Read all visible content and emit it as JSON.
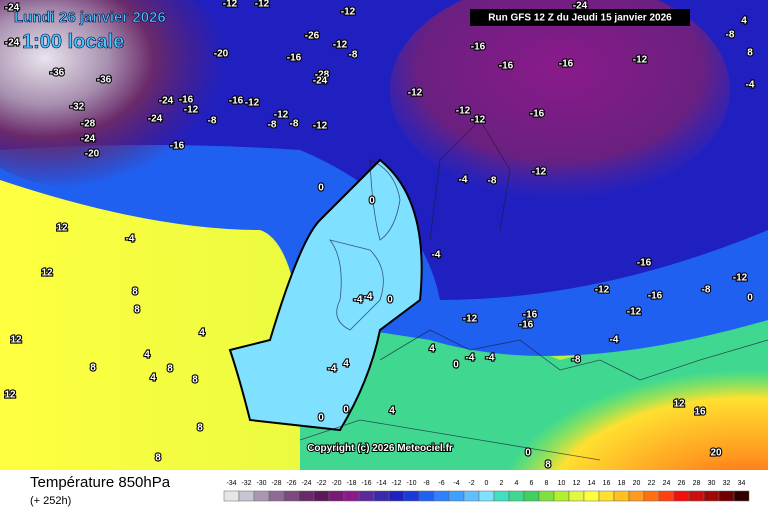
{
  "header": {
    "date": "Lundi 26 janvier 2026",
    "time": "1:00 locale",
    "run": "Run GFS 12 Z du Jeudi 15 janvier 2026",
    "copyright": "Copyright (c) 2026 Meteociel.fr"
  },
  "footer": {
    "title": "Température 850hPa",
    "lead": "(+ 252h)"
  },
  "isotherm_labels": [
    -24,
    -36,
    -36,
    -32,
    -28,
    -24,
    -20,
    -24,
    -24,
    -16,
    -12,
    -16,
    -20,
    -26,
    -12,
    -8,
    -16,
    -28,
    -24,
    -12,
    -12,
    -8,
    -8,
    -12,
    -8,
    -12,
    -16,
    -16,
    -16,
    -16,
    -12,
    -12,
    -12,
    -8,
    -4,
    0,
    0,
    -4,
    12,
    12,
    12,
    12,
    8,
    8,
    4,
    4,
    4,
    8,
    8,
    8,
    8,
    8,
    -16,
    -16,
    -12,
    -12,
    -16,
    -16,
    -12,
    -4,
    -8,
    -4,
    -4,
    0,
    4,
    -4,
    -4,
    4,
    0,
    0,
    4,
    -4,
    0,
    -4,
    0,
    8,
    20,
    16,
    12,
    -8,
    -12,
    0,
    -4,
    8,
    -24,
    -12,
    -12,
    -16,
    -12,
    -24,
    -12,
    -8,
    4
  ],
  "scale": [
    {
      "value": -34,
      "color": "#e6e6e6"
    },
    {
      "value": -32,
      "color": "#c8c4d0"
    },
    {
      "value": -30,
      "color": "#a898b0"
    },
    {
      "value": -28,
      "color": "#8c6c94"
    },
    {
      "value": -26,
      "color": "#7a4a80"
    },
    {
      "value": -24,
      "color": "#6a2a6a"
    },
    {
      "value": -22,
      "color": "#5a1a5a"
    },
    {
      "value": -20,
      "color": "#761a76"
    },
    {
      "value": -18,
      "color": "#8a1a8a"
    },
    {
      "value": -16,
      "color": "#5a2a9a"
    },
    {
      "value": -14,
      "color": "#3a2aaa"
    },
    {
      "value": -12,
      "color": "#2020c0"
    },
    {
      "value": -10,
      "color": "#1a3ad8"
    },
    {
      "value": -8,
      "color": "#2060f0"
    },
    {
      "value": -6,
      "color": "#3080ff"
    },
    {
      "value": -4,
      "color": "#40a0ff"
    },
    {
      "value": -2,
      "color": "#60c0ff"
    },
    {
      "value": 0,
      "color": "#80e0ff"
    },
    {
      "value": 2,
      "color": "#40e0c0"
    },
    {
      "value": 4,
      "color": "#40d890"
    },
    {
      "value": 6,
      "color": "#40d060"
    },
    {
      "value": 8,
      "color": "#80e040"
    },
    {
      "value": 10,
      "color": "#b0f030"
    },
    {
      "value": 12,
      "color": "#e0f840"
    },
    {
      "value": 14,
      "color": "#ffff40"
    },
    {
      "value": 16,
      "color": "#ffe030"
    },
    {
      "value": 18,
      "color": "#ffc020"
    },
    {
      "value": 20,
      "color": "#ff9a20"
    },
    {
      "value": 22,
      "color": "#ff7010"
    },
    {
      "value": 24,
      "color": "#ff4010"
    },
    {
      "value": 26,
      "color": "#f01010"
    },
    {
      "value": 28,
      "color": "#c81010"
    },
    {
      "value": 30,
      "color": "#a00808"
    },
    {
      "value": 32,
      "color": "#700000"
    },
    {
      "value": 34,
      "color": "#300000"
    }
  ]
}
